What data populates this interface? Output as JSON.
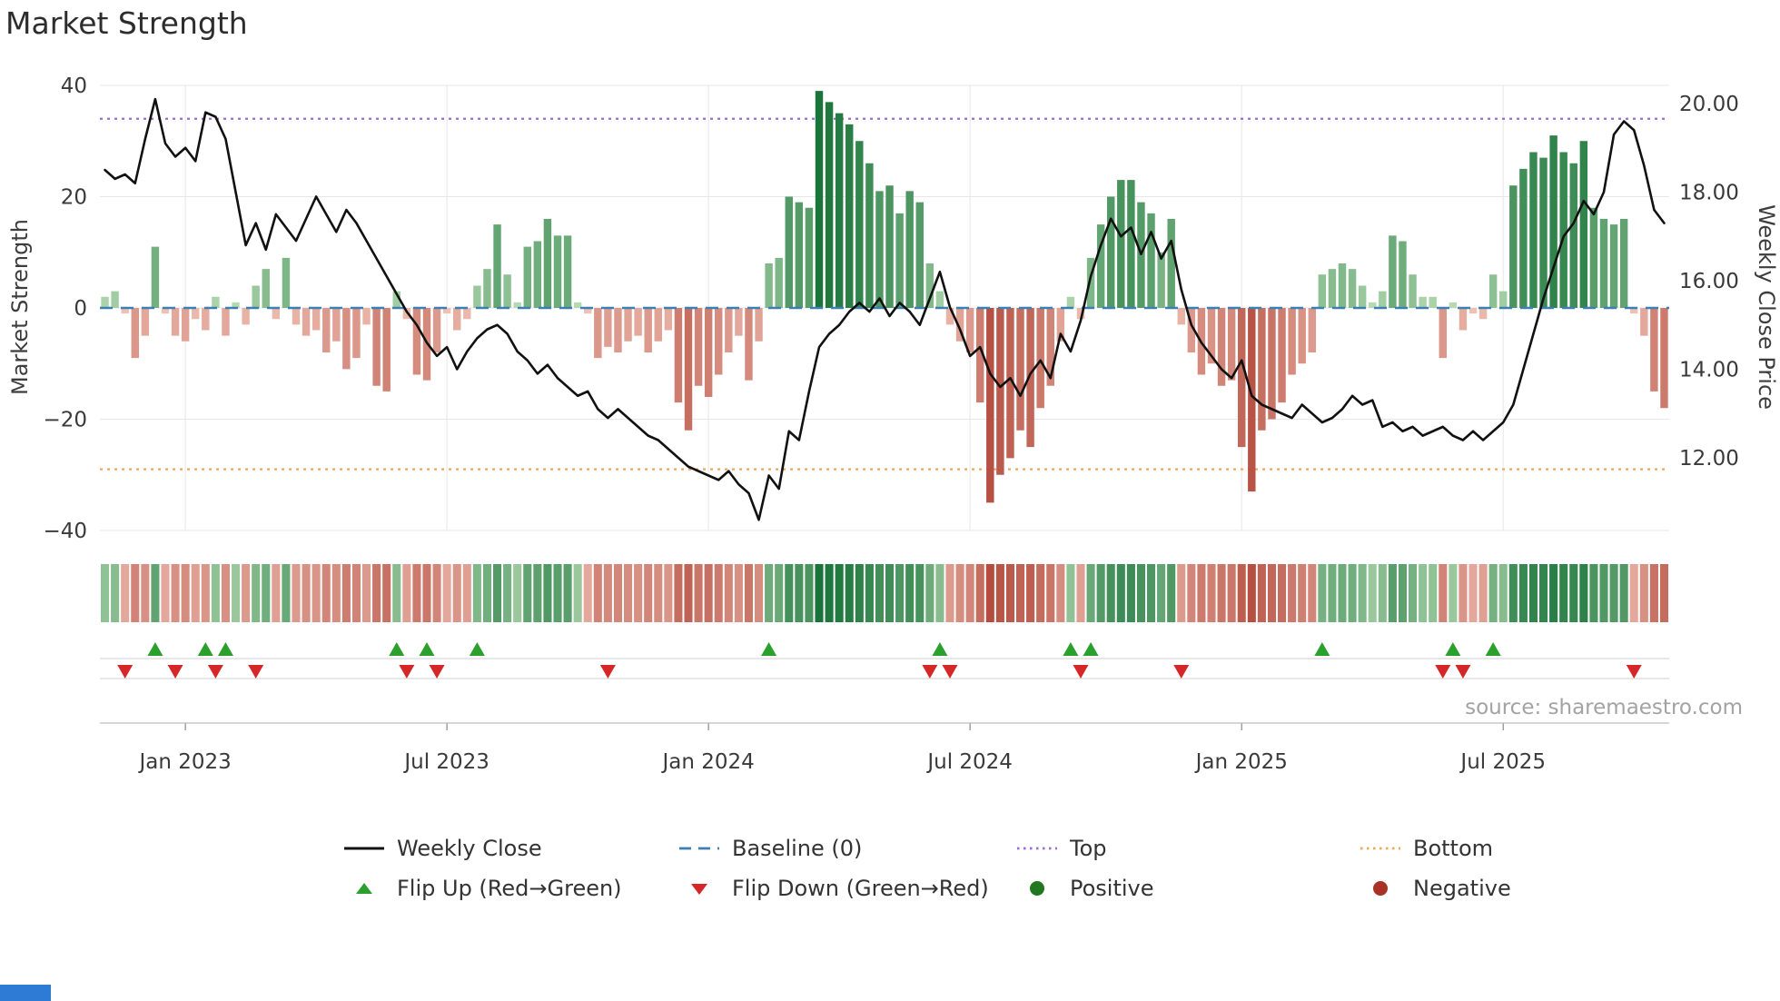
{
  "title": "Market Strength",
  "source": "source: sharemaestro.com",
  "axes": {
    "left_label": "Market Strength",
    "right_label": "Weekly Close Price"
  },
  "colors": {
    "pos_light": "#cdeac4",
    "pos_dark": "#187339",
    "neg_light": "#f7cfc3",
    "neg_dark": "#b04537",
    "price_line": "#111111",
    "baseline": "#3c7fb1",
    "top_line": "#9b6fd0",
    "bottom_line": "#f2a65e",
    "flip_up": "#2ca02c",
    "flip_down": "#d62728",
    "positive_dot": "#217821",
    "negative_dot": "#a93226",
    "grid": "#e7e7e7",
    "axis_line": "#bdbdbd",
    "track_line": "#cfcfcf",
    "axis_text": "#3a3a3a"
  },
  "legend": {
    "rows": [
      [
        {
          "label": "Weekly Close",
          "swatch": "line",
          "color": "#111111"
        },
        {
          "label": "Baseline (0)",
          "swatch": "dashed-line",
          "color": "#3c7fb1"
        },
        {
          "label": "Top",
          "swatch": "dotted-line",
          "color": "#9b6fd0"
        },
        {
          "label": "Bottom",
          "swatch": "dotted-line",
          "color": "#f2a65e"
        }
      ],
      [
        {
          "label": "Flip Up (Red→Green)",
          "swatch": "triangle-up",
          "color": "#2ca02c"
        },
        {
          "label": "Flip Down (Green→Red)",
          "swatch": "triangle-down",
          "color": "#d62728"
        },
        {
          "label": "Positive",
          "swatch": "circle",
          "color": "#217821"
        },
        {
          "label": "Negative",
          "swatch": "circle",
          "color": "#a93226"
        }
      ]
    ]
  },
  "chart_data": {
    "type": "bar+line",
    "title": "Market Strength",
    "x_unit": "week",
    "x_ticks": [
      {
        "index": 8,
        "label": "Jan 2023"
      },
      {
        "index": 34,
        "label": "Jul 2023"
      },
      {
        "index": 60,
        "label": "Jan 2024"
      },
      {
        "index": 86,
        "label": "Jul 2024"
      },
      {
        "index": 113,
        "label": "Jan 2025"
      },
      {
        "index": 139,
        "label": "Jul 2025"
      }
    ],
    "left_axis": {
      "label": "Market Strength",
      "ticks": [
        40,
        20,
        0,
        -20,
        -40
      ],
      "range": [
        -42,
        42
      ]
    },
    "right_axis": {
      "label": "Weekly Close Price",
      "ticks": [
        20,
        18,
        16,
        14,
        12
      ],
      "range": [
        10.4,
        20.6
      ]
    },
    "baseline": 0,
    "top_level": 34,
    "bottom_level": -29,
    "series": [
      {
        "name": "Market Strength",
        "type": "bar",
        "axis": "left",
        "values": [
          2,
          3,
          -1,
          -9,
          -5,
          11,
          -1,
          -5,
          -6,
          -2,
          -4,
          2,
          -5,
          1,
          -3,
          4,
          7,
          -2,
          9,
          -3,
          -5,
          -4,
          -8,
          -6,
          -11,
          -9,
          -3,
          -14,
          -15,
          3,
          -2,
          -12,
          -13,
          -8,
          -1,
          -4,
          -2,
          4,
          7,
          15,
          6,
          1,
          11,
          12,
          16,
          13,
          13,
          1,
          -1,
          -9,
          -7,
          -8,
          -6,
          -5,
          -8,
          -6,
          -4,
          -17,
          -22,
          -14,
          -16,
          -12,
          -8,
          -5,
          -13,
          -6,
          8,
          9,
          20,
          19,
          18,
          39,
          37,
          35,
          33,
          30,
          26,
          21,
          22,
          17,
          21,
          19,
          8,
          3,
          -3,
          -6,
          -8,
          -17,
          -35,
          -30,
          -27,
          -22,
          -25,
          -18,
          -14,
          -6,
          2,
          -2,
          9,
          15,
          20,
          23,
          23,
          19,
          17,
          10,
          16,
          -3,
          -8,
          -12,
          -10,
          -14,
          -13,
          -25,
          -33,
          -22,
          -20,
          -17,
          -12,
          -10,
          -8,
          6,
          7,
          8,
          7,
          4,
          1,
          3,
          13,
          12,
          6,
          2,
          2,
          -9,
          1,
          -4,
          -1,
          -2,
          6,
          3,
          22,
          25,
          28,
          27,
          31,
          28,
          26,
          30,
          18,
          16,
          15,
          16,
          -1,
          -5,
          -15,
          -18
        ]
      },
      {
        "name": "Weekly Close",
        "type": "line",
        "axis": "right",
        "values": [
          18.5,
          18.3,
          18.4,
          18.2,
          19.2,
          20.1,
          19.1,
          18.8,
          19.0,
          18.7,
          19.8,
          19.7,
          19.2,
          18.0,
          16.8,
          17.3,
          16.7,
          17.5,
          17.2,
          16.9,
          17.4,
          17.9,
          17.5,
          17.1,
          17.6,
          17.3,
          16.9,
          16.5,
          16.1,
          15.7,
          15.3,
          15.0,
          14.6,
          14.3,
          14.5,
          14.0,
          14.4,
          14.7,
          14.9,
          15.0,
          14.8,
          14.4,
          14.2,
          13.9,
          14.1,
          13.8,
          13.6,
          13.4,
          13.5,
          13.1,
          12.9,
          13.1,
          12.9,
          12.7,
          12.5,
          12.4,
          12.2,
          12.0,
          11.8,
          11.7,
          11.6,
          11.5,
          11.7,
          11.4,
          11.2,
          10.6,
          11.6,
          11.3,
          12.6,
          12.4,
          13.5,
          14.5,
          14.8,
          15.0,
          15.3,
          15.5,
          15.3,
          15.6,
          15.2,
          15.5,
          15.3,
          15.0,
          15.6,
          16.2,
          15.4,
          14.9,
          14.3,
          14.5,
          13.9,
          13.6,
          13.8,
          13.4,
          13.9,
          14.2,
          13.8,
          14.8,
          14.4,
          15.1,
          16.1,
          16.8,
          17.4,
          17.0,
          17.2,
          16.6,
          17.1,
          16.5,
          16.9,
          15.8,
          15.0,
          14.6,
          14.3,
          14.0,
          13.8,
          14.2,
          13.4,
          13.2,
          13.1,
          13.0,
          12.9,
          13.2,
          13.0,
          12.8,
          12.9,
          13.1,
          13.4,
          13.2,
          13.3,
          12.7,
          12.8,
          12.6,
          12.7,
          12.5,
          12.6,
          12.7,
          12.5,
          12.4,
          12.6,
          12.4,
          12.6,
          12.8,
          13.2,
          14.0,
          14.8,
          15.6,
          16.3,
          17.0,
          17.3,
          17.8,
          17.5,
          18.0,
          19.3,
          19.6,
          19.4,
          18.6,
          17.6,
          17.3
        ]
      }
    ],
    "flip_up_weeks": [
      5,
      10,
      12,
      29,
      32,
      37,
      66,
      83,
      96,
      98,
      121,
      134,
      138
    ],
    "flip_down_weeks": [
      2,
      7,
      11,
      15,
      30,
      33,
      50,
      82,
      84,
      97,
      107,
      133,
      135,
      152
    ]
  }
}
